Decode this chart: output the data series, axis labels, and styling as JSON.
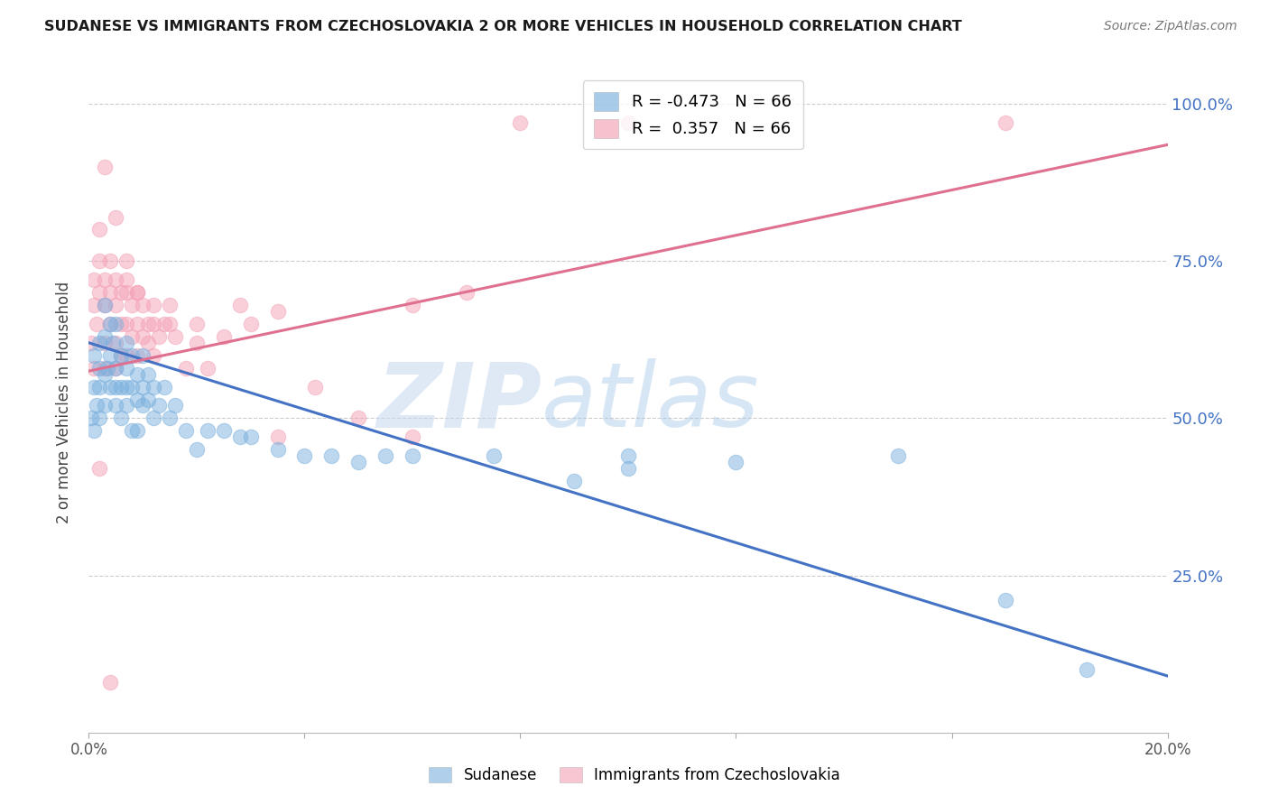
{
  "title": "SUDANESE VS IMMIGRANTS FROM CZECHOSLOVAKIA 2 OR MORE VEHICLES IN HOUSEHOLD CORRELATION CHART",
  "source": "Source: ZipAtlas.com",
  "ylabel": "2 or more Vehicles in Household",
  "xmin": 0.0,
  "xmax": 0.2,
  "ymin": 0.0,
  "ymax": 1.05,
  "yticks": [
    0.0,
    0.25,
    0.5,
    0.75,
    1.0
  ],
  "ytick_labels": [
    "",
    "25.0%",
    "50.0%",
    "75.0%",
    "100.0%"
  ],
  "xticks": [
    0.0,
    0.04,
    0.08,
    0.12,
    0.16,
    0.2
  ],
  "xtick_labels": [
    "0.0%",
    "",
    "",
    "",
    "",
    "20.0%"
  ],
  "sudanese_color": "#7ab0de",
  "czech_color": "#f4a0b5",
  "blue_line_x": [
    0.0,
    0.2
  ],
  "blue_line_y": [
    0.62,
    0.09
  ],
  "pink_line_x": [
    0.0,
    0.2
  ],
  "pink_line_y": [
    0.575,
    0.935
  ],
  "sudanese_x": [
    0.0005,
    0.001,
    0.001,
    0.001,
    0.0015,
    0.002,
    0.002,
    0.002,
    0.002,
    0.003,
    0.003,
    0.003,
    0.003,
    0.0035,
    0.004,
    0.004,
    0.004,
    0.0045,
    0.005,
    0.005,
    0.005,
    0.005,
    0.006,
    0.006,
    0.006,
    0.007,
    0.007,
    0.007,
    0.007,
    0.008,
    0.008,
    0.008,
    0.009,
    0.009,
    0.009,
    0.01,
    0.01,
    0.01,
    0.011,
    0.011,
    0.012,
    0.012,
    0.013,
    0.014,
    0.015,
    0.016,
    0.018,
    0.02,
    0.022,
    0.025,
    0.028,
    0.03,
    0.035,
    0.04,
    0.045,
    0.05,
    0.06,
    0.075,
    0.09,
    0.1,
    0.12,
    0.15,
    0.17,
    0.185,
    0.1,
    0.055
  ],
  "sudanese_y": [
    0.5,
    0.55,
    0.6,
    0.48,
    0.52,
    0.58,
    0.62,
    0.55,
    0.5,
    0.57,
    0.63,
    0.68,
    0.52,
    0.58,
    0.65,
    0.6,
    0.55,
    0.62,
    0.58,
    0.55,
    0.52,
    0.65,
    0.6,
    0.55,
    0.5,
    0.62,
    0.55,
    0.58,
    0.52,
    0.6,
    0.55,
    0.48,
    0.57,
    0.53,
    0.48,
    0.6,
    0.55,
    0.52,
    0.57,
    0.53,
    0.55,
    0.5,
    0.52,
    0.55,
    0.5,
    0.52,
    0.48,
    0.45,
    0.48,
    0.48,
    0.47,
    0.47,
    0.45,
    0.44,
    0.44,
    0.43,
    0.44,
    0.44,
    0.4,
    0.42,
    0.43,
    0.44,
    0.21,
    0.1,
    0.44,
    0.44
  ],
  "czech_x": [
    0.0005,
    0.001,
    0.001,
    0.001,
    0.0015,
    0.002,
    0.002,
    0.002,
    0.003,
    0.003,
    0.003,
    0.003,
    0.004,
    0.004,
    0.004,
    0.005,
    0.005,
    0.005,
    0.005,
    0.006,
    0.006,
    0.006,
    0.007,
    0.007,
    0.007,
    0.007,
    0.008,
    0.008,
    0.009,
    0.009,
    0.009,
    0.01,
    0.01,
    0.011,
    0.011,
    0.012,
    0.012,
    0.013,
    0.014,
    0.015,
    0.016,
    0.018,
    0.02,
    0.022,
    0.025,
    0.028,
    0.03,
    0.035,
    0.042,
    0.05,
    0.06,
    0.07,
    0.08,
    0.1,
    0.17,
    0.002,
    0.003,
    0.005,
    0.007,
    0.009,
    0.012,
    0.015,
    0.02,
    0.035,
    0.06,
    0.004
  ],
  "czech_y": [
    0.62,
    0.68,
    0.72,
    0.58,
    0.65,
    0.7,
    0.75,
    0.8,
    0.72,
    0.68,
    0.62,
    0.58,
    0.75,
    0.7,
    0.65,
    0.72,
    0.68,
    0.62,
    0.58,
    0.7,
    0.65,
    0.6,
    0.75,
    0.7,
    0.65,
    0.6,
    0.68,
    0.63,
    0.7,
    0.65,
    0.6,
    0.68,
    0.63,
    0.65,
    0.62,
    0.65,
    0.6,
    0.63,
    0.65,
    0.68,
    0.63,
    0.58,
    0.62,
    0.58,
    0.63,
    0.68,
    0.65,
    0.67,
    0.55,
    0.5,
    0.68,
    0.7,
    0.97,
    0.97,
    0.97,
    0.42,
    0.9,
    0.82,
    0.72,
    0.7,
    0.68,
    0.65,
    0.65,
    0.47,
    0.47,
    0.08
  ]
}
